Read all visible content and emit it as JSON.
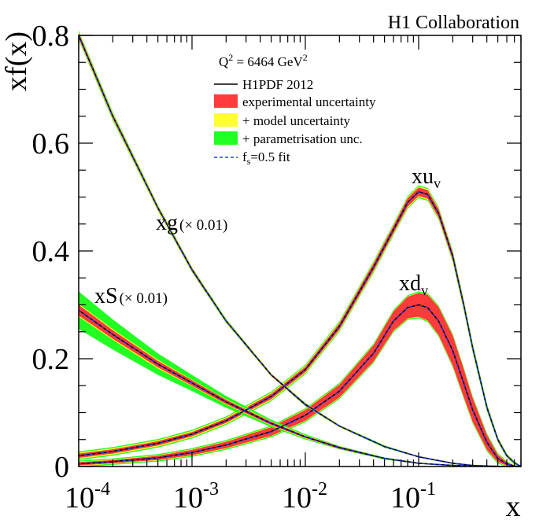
{
  "collaboration": "H1 Collaboration",
  "chart_data": {
    "type": "line",
    "xscale": "log",
    "xlim": [
      0.0001,
      0.8
    ],
    "ylim": [
      0,
      0.8
    ],
    "xlabel": "x",
    "ylabel": "xf(x)",
    "xticks": [
      {
        "base": "10",
        "exp": "-4",
        "value": 0.0001
      },
      {
        "base": "10",
        "exp": "-3",
        "value": 0.001
      },
      {
        "base": "10",
        "exp": "-2",
        "value": 0.01
      },
      {
        "base": "10",
        "exp": "-1",
        "value": 0.1
      }
    ],
    "yticks": [
      {
        "label": "0",
        "value": 0
      },
      {
        "label": "0.2",
        "value": 0.2
      },
      {
        "label": "0.4",
        "value": 0.4
      },
      {
        "label": "0.6",
        "value": 0.6
      },
      {
        "label": "0.8",
        "value": 0.8
      }
    ],
    "legend": {
      "placement": "top-center",
      "scale": {
        "prefix": "Q",
        "prefix_sup": "2",
        "middle": " = 6464 GeV",
        "unit_sup": "2"
      },
      "entries": [
        {
          "key": "central",
          "label": "H1PDF 2012",
          "style": "line",
          "color": "#000000"
        },
        {
          "key": "exp",
          "label": "experimental uncertainty",
          "style": "fill",
          "color": "#ff3b3b"
        },
        {
          "key": "model",
          "label": "+ model uncertainty",
          "style": "fill",
          "color": "#ffff33"
        },
        {
          "key": "param",
          "label": "+ parametrisation unc.",
          "style": "fill",
          "color": "#22ff22"
        },
        {
          "key": "fs",
          "label_main": "f",
          "label_sub": "s",
          "label_rest": "=0.5 fit",
          "style": "dashed",
          "color": "#1a3cff"
        }
      ]
    },
    "curve_labels": {
      "xuv": {
        "main": "xu",
        "sub": "v"
      },
      "xdv": {
        "main": "xd",
        "sub": "v"
      },
      "xg": {
        "main": "xg",
        "scale": "(× 0.01)"
      },
      "xS": {
        "main": "xS",
        "scale": "(× 0.01)"
      }
    },
    "series": [
      {
        "name": "xuv",
        "x": [
          0.0001,
          0.0002,
          0.0005,
          0.001,
          0.002,
          0.005,
          0.01,
          0.02,
          0.04,
          0.06,
          0.08,
          0.1,
          0.12,
          0.15,
          0.2,
          0.25,
          0.3,
          0.4,
          0.5,
          0.6,
          0.7,
          0.8
        ],
        "y": [
          0.02,
          0.028,
          0.043,
          0.06,
          0.085,
          0.13,
          0.18,
          0.26,
          0.37,
          0.44,
          0.49,
          0.51,
          0.505,
          0.47,
          0.39,
          0.3,
          0.22,
          0.11,
          0.05,
          0.02,
          0.007,
          0.0
        ],
        "band_exp": [
          0.004,
          0.004,
          0.004,
          0.004,
          0.004,
          0.005,
          0.005,
          0.006,
          0.007,
          0.007,
          0.008,
          0.008,
          0.008,
          0.008,
          0.007,
          0.006,
          0.005,
          0.004,
          0.003,
          0.002,
          0.001,
          0.0
        ],
        "band_model": [
          0.006,
          0.006,
          0.006,
          0.006,
          0.006,
          0.007,
          0.007,
          0.008,
          0.009,
          0.009,
          0.01,
          0.01,
          0.01,
          0.01,
          0.009,
          0.008,
          0.007,
          0.005,
          0.004,
          0.003,
          0.002,
          0.0
        ],
        "band_param": [
          0.008,
          0.008,
          0.008,
          0.008,
          0.008,
          0.009,
          0.009,
          0.01,
          0.011,
          0.011,
          0.012,
          0.012,
          0.012,
          0.012,
          0.011,
          0.01,
          0.009,
          0.007,
          0.005,
          0.004,
          0.003,
          0.0
        ]
      },
      {
        "name": "xdv",
        "x": [
          0.0001,
          0.0002,
          0.0005,
          0.001,
          0.002,
          0.005,
          0.01,
          0.02,
          0.04,
          0.06,
          0.08,
          0.1,
          0.12,
          0.15,
          0.2,
          0.25,
          0.3,
          0.4,
          0.5,
          0.6,
          0.7,
          0.8
        ],
        "y": [
          0.005,
          0.009,
          0.016,
          0.026,
          0.04,
          0.065,
          0.095,
          0.14,
          0.21,
          0.27,
          0.295,
          0.3,
          0.295,
          0.27,
          0.215,
          0.155,
          0.105,
          0.045,
          0.015,
          0.005,
          0.001,
          0.0
        ],
        "band_exp": [
          0.003,
          0.003,
          0.004,
          0.005,
          0.006,
          0.008,
          0.01,
          0.012,
          0.015,
          0.018,
          0.02,
          0.022,
          0.024,
          0.026,
          0.028,
          0.026,
          0.022,
          0.014,
          0.007,
          0.003,
          0.001,
          0.0
        ],
        "band_model": [
          0.004,
          0.004,
          0.005,
          0.006,
          0.007,
          0.009,
          0.011,
          0.013,
          0.016,
          0.019,
          0.021,
          0.023,
          0.025,
          0.027,
          0.029,
          0.027,
          0.023,
          0.015,
          0.008,
          0.004,
          0.002,
          0.0
        ],
        "band_param": [
          0.006,
          0.006,
          0.007,
          0.008,
          0.009,
          0.011,
          0.013,
          0.015,
          0.018,
          0.021,
          0.023,
          0.025,
          0.027,
          0.029,
          0.031,
          0.029,
          0.025,
          0.017,
          0.01,
          0.005,
          0.002,
          0.0
        ]
      },
      {
        "name": "xg",
        "x": [
          0.0001,
          0.0002,
          0.0005,
          0.001,
          0.002,
          0.005,
          0.01,
          0.02,
          0.05,
          0.1,
          0.2,
          0.3,
          0.5,
          0.7,
          0.8
        ],
        "y": [
          0.8,
          0.65,
          0.48,
          0.365,
          0.27,
          0.17,
          0.115,
          0.075,
          0.037,
          0.018,
          0.006,
          0.002,
          0.0003,
          0.0,
          0.0
        ],
        "band_exp": [
          0.005,
          0.004,
          0.003,
          0.003,
          0.002,
          0.002,
          0.002,
          0.001,
          0.001,
          0.001,
          0.001,
          0.0,
          0.0,
          0.0,
          0.0
        ],
        "band_model": [
          0.007,
          0.006,
          0.005,
          0.004,
          0.003,
          0.003,
          0.002,
          0.002,
          0.001,
          0.001,
          0.001,
          0.0,
          0.0,
          0.0,
          0.0
        ],
        "band_param": [
          0.009,
          0.008,
          0.006,
          0.005,
          0.004,
          0.003,
          0.003,
          0.002,
          0.002,
          0.001,
          0.001,
          0.0,
          0.0,
          0.0,
          0.0
        ]
      },
      {
        "name": "xS",
        "x": [
          0.0001,
          0.0002,
          0.0005,
          0.001,
          0.002,
          0.005,
          0.01,
          0.02,
          0.05,
          0.1,
          0.2,
          0.3,
          0.5,
          0.8
        ],
        "y": [
          0.29,
          0.245,
          0.19,
          0.155,
          0.12,
          0.08,
          0.055,
          0.035,
          0.015,
          0.006,
          0.002,
          0.001,
          0.0,
          0.0
        ],
        "band_exp": [
          0.01,
          0.008,
          0.006,
          0.005,
          0.004,
          0.003,
          0.002,
          0.002,
          0.001,
          0.001,
          0.0,
          0.0,
          0.0,
          0.0
        ],
        "band_model": [
          0.012,
          0.01,
          0.008,
          0.006,
          0.005,
          0.004,
          0.003,
          0.002,
          0.001,
          0.001,
          0.0,
          0.0,
          0.0,
          0.0
        ],
        "band_param": [
          0.035,
          0.028,
          0.02,
          0.015,
          0.011,
          0.007,
          0.005,
          0.003,
          0.002,
          0.001,
          0.0,
          0.0,
          0.0,
          0.0
        ]
      }
    ]
  }
}
